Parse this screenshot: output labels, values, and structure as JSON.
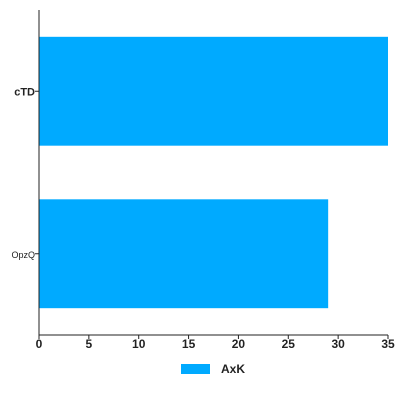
{
  "chart_data": {
    "type": "bar",
    "orientation": "horizontal",
    "categories": [
      "cTD",
      "OpzQ"
    ],
    "series": [
      {
        "name": "AxK",
        "values": [
          35,
          29
        ],
        "color": "#00aaff"
      }
    ],
    "xlim": [
      0,
      35
    ],
    "x_ticks": [
      0,
      5,
      10,
      15,
      20,
      25,
      30,
      35
    ],
    "title": "",
    "xlabel": "",
    "ylabel": "",
    "grid": false,
    "legend_position": "bottom-center"
  }
}
